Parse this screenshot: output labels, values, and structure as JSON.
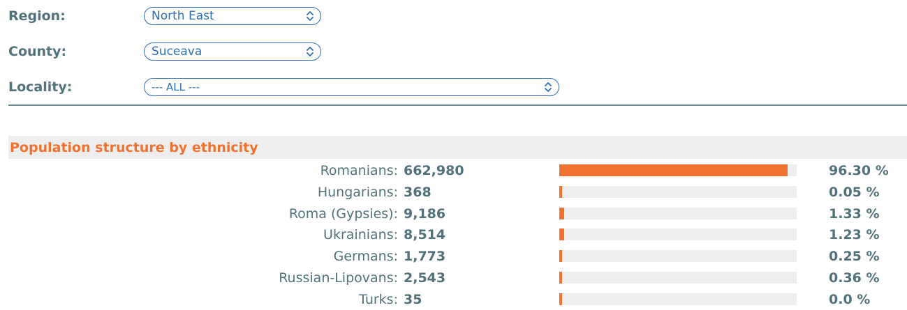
{
  "filters": {
    "region": {
      "label": "Region:",
      "value": "North East"
    },
    "county": {
      "label": "County:",
      "value": "Suceava"
    },
    "locality": {
      "label": "Locality:",
      "value": "--- ALL ---"
    }
  },
  "section": {
    "title": "Population structure by ethnicity"
  },
  "colors": {
    "accent": "#ef7230",
    "link": "#2f6fb3",
    "text": "#52727a",
    "track": "#eeeeee"
  },
  "ethnicities": [
    {
      "name": "Romanians:",
      "count": "662,980",
      "percent_label": "96.30 %",
      "share": 96.3
    },
    {
      "name": "Hungarians:",
      "count": "368",
      "percent_label": "0.05 %",
      "share": 0.05
    },
    {
      "name": "Roma (Gypsies):",
      "count": "9,186",
      "percent_label": "1.33 %",
      "share": 1.33
    },
    {
      "name": "Ukrainians:",
      "count": "8,514",
      "percent_label": "1.23 %",
      "share": 1.23
    },
    {
      "name": "Germans:",
      "count": "1,773",
      "percent_label": "0.25 %",
      "share": 0.25
    },
    {
      "name": "Russian-Lipovans:",
      "count": "2,543",
      "percent_label": "0.36 %",
      "share": 0.36
    },
    {
      "name": "Turks:",
      "count": "35",
      "percent_label": "0.0 %",
      "share": 0.0
    }
  ]
}
